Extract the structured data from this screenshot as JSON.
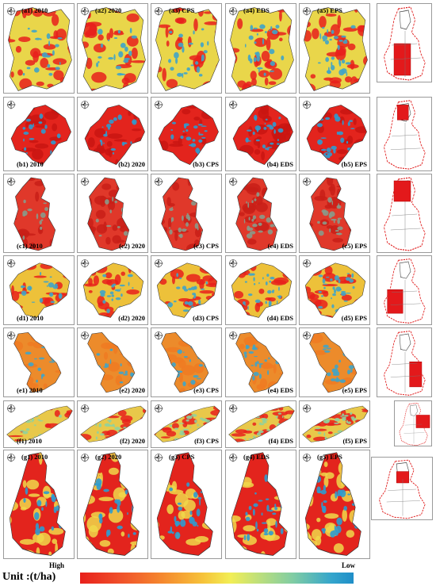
{
  "rows": [
    {
      "id": "a",
      "panels": [
        "(a1) 2010",
        "(a2) 2020",
        "(a3) CPS",
        "(a4) EDS",
        "(a5) EPS"
      ],
      "colors": {
        "base": "#e9d64a",
        "hot": "#e8201c",
        "cool": "#3fa4c9"
      }
    },
    {
      "id": "b",
      "panels": [
        "(b1) 2010",
        "(b2) 2020",
        "(b3) CPS",
        "(b4) EDS",
        "(b5) EPS"
      ],
      "colors": {
        "base": "#e3241d",
        "hot": "#c91512",
        "cool": "#2e9bd0"
      }
    },
    {
      "id": "c",
      "panels": [
        "(c1) 2010",
        "(c2) 2020",
        "(c3) CPS",
        "(c4) EDS",
        "(c5) EPS"
      ],
      "colors": {
        "base": "#e0382a",
        "hot": "#c81f18",
        "cool": "#8a9a8a"
      }
    },
    {
      "id": "d",
      "panels": [
        "(d1) 2010",
        "(d2) 2020",
        "(d3) CPS",
        "(d4) EDS",
        "(d5) EPS"
      ],
      "colors": {
        "base": "#edc13a",
        "hot": "#e8201c",
        "cool": "#3fa4c9"
      }
    },
    {
      "id": "e",
      "panels": [
        "(e1) 2010",
        "(e2) 2020",
        "(e3) CPS",
        "(e4) EDS",
        "(e5) EPS"
      ],
      "colors": {
        "base": "#ec8b2b",
        "hot": "#f07a22",
        "cool": "#3fa4c9"
      }
    },
    {
      "id": "f",
      "panels": [
        "(f1) 2010",
        "(f2) 2020",
        "(f3) CPS",
        "(f4) EDS",
        "(f5) EPS"
      ],
      "colors": {
        "base": "#e8c84a",
        "hot": "#e8201c",
        "cool": "#8fd19e"
      }
    },
    {
      "id": "g",
      "panels": [
        "(g1) 2010",
        "(g2) 2020",
        "(g3) CPS",
        "(g4) EDS",
        "(g5) EPS"
      ],
      "colors": {
        "base": "#e3241d",
        "hot": "#f0d84a",
        "cool": "#2e9bd0"
      }
    }
  ],
  "legend": {
    "high": "High",
    "low": "Low",
    "unit": "Unit :(t/ha)",
    "colors": [
      "#e8201c",
      "#f5882e",
      "#f2ee55",
      "#7fcca4",
      "#1f8ec8"
    ]
  }
}
